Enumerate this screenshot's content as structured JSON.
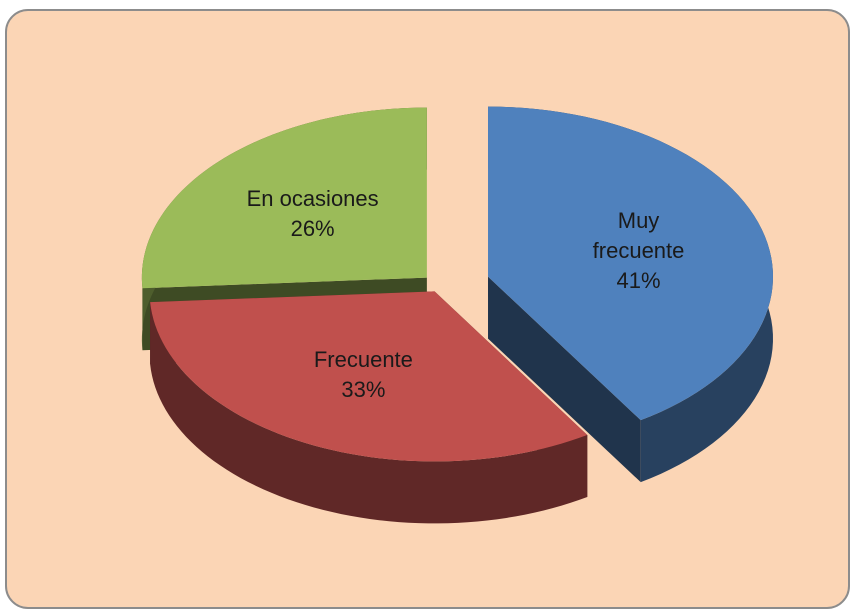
{
  "chart_data": {
    "type": "pie",
    "categories": [
      "Muy frecuente",
      "Frecuente",
      "En ocasiones"
    ],
    "values": [
      41,
      33,
      26
    ],
    "value_labels": [
      "41%",
      "33%",
      "26%"
    ],
    "colors": [
      "#4f81bd",
      "#c0504d",
      "#9bbb59"
    ]
  }
}
